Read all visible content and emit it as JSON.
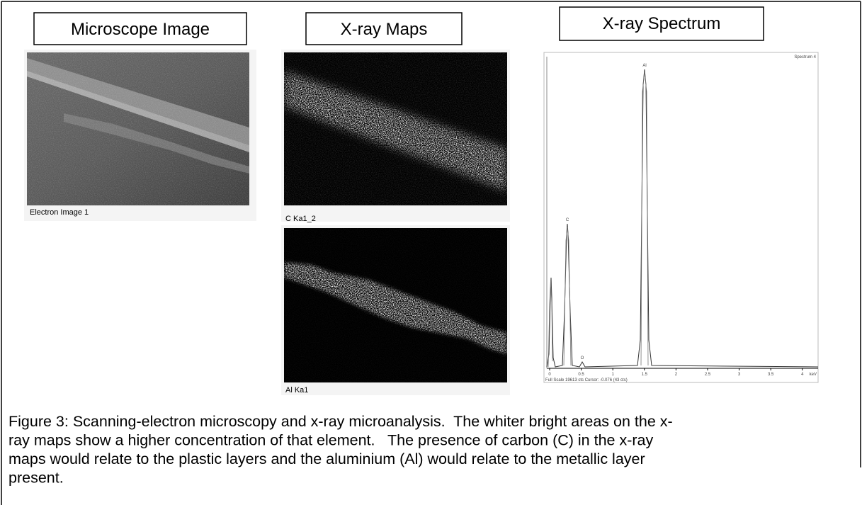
{
  "headings": [
    "Microscope Image",
    "X-ray Maps",
    "X-ray Spectrum"
  ],
  "panels": {
    "electron_image": "Electron Image 1",
    "c_map": "C Ka1_2",
    "al_map": "Al Ka1"
  },
  "spectrum": {
    "title": "Spectrum 4",
    "peaks": [
      "Al",
      "C",
      "O"
    ],
    "x_ticks": [
      "0",
      "0.5",
      "1",
      "1.5",
      "2",
      "2.5",
      "3",
      "3.5",
      "4"
    ],
    "x_unit": "keV",
    "footer": "Full Scale 19613 cts Cursor: -0.076 (43 cts)"
  },
  "caption": [
    "Figure 3: Scanning-electron microscopy and x-ray microanalysis.  The whiter bright areas on the x-",
    "ray maps show a higher concentration of that element.   The presence of carbon (C) in the x-ray",
    "maps would relate to the plastic layers and the aluminium (Al) would relate to the metallic layer",
    "present."
  ]
}
